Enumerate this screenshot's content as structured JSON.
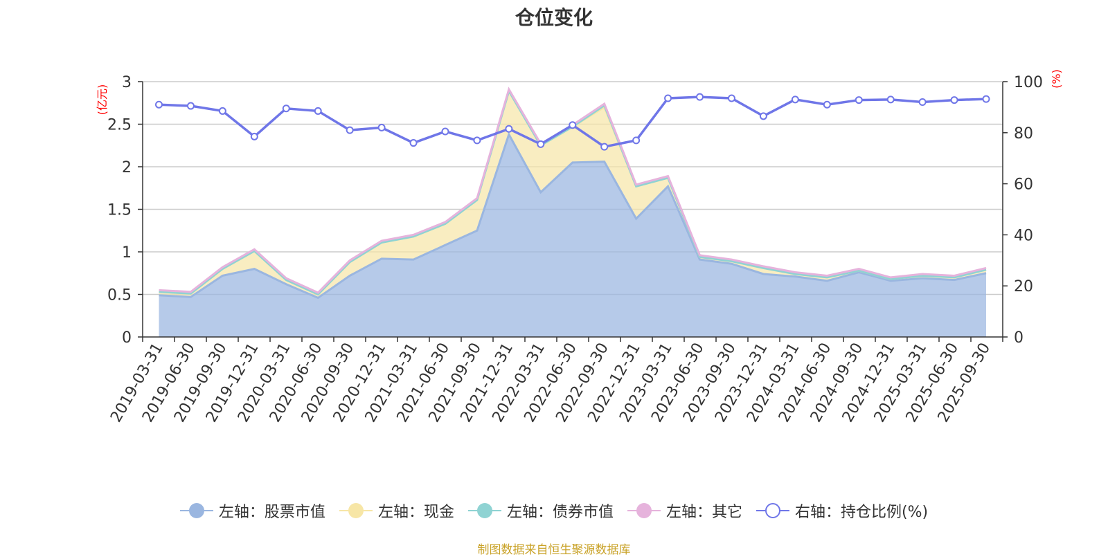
{
  "title": "仓位变化",
  "source": "制图数据来自恒生聚源数据库",
  "legend": [
    {
      "key": "stock",
      "label": "左轴：股票市值",
      "color": "#9ab6e0",
      "marker": "filled"
    },
    {
      "key": "cash",
      "label": "左轴：现金",
      "color": "#f7e6a6",
      "marker": "filled"
    },
    {
      "key": "bond",
      "label": "左轴：债券市值",
      "color": "#8fd3d3",
      "marker": "filled"
    },
    {
      "key": "other",
      "label": "左轴：其它",
      "color": "#e6b3dc",
      "marker": "filled"
    },
    {
      "key": "ratio",
      "label": "右轴：持仓比例(%)",
      "color": "#6f76e8",
      "marker": "hollow"
    }
  ],
  "chart_data": {
    "type": "area",
    "title": "仓位变化",
    "x": [
      "2019-03-31",
      "2019-06-30",
      "2019-09-30",
      "2019-12-31",
      "2020-03-31",
      "2020-06-30",
      "2020-09-30",
      "2020-12-31",
      "2021-03-31",
      "2021-06-30",
      "2021-09-30",
      "2021-12-31",
      "2022-03-31",
      "2022-06-30",
      "2022-09-30",
      "2022-12-31",
      "2023-03-31",
      "2023-06-30",
      "2023-09-30",
      "2023-12-31",
      "2024-03-31",
      "2024-06-30",
      "2024-09-30",
      "2024-12-31",
      "2025-03-31",
      "2025-06-30",
      "2025-09-30"
    ],
    "left_axis": {
      "label": "(亿元)",
      "range": [
        0,
        3
      ],
      "ticks": [
        "0",
        "0.5",
        "1",
        "1.5",
        "2",
        "2.5",
        "3"
      ]
    },
    "right_axis": {
      "label": "(%)",
      "range": [
        0,
        100
      ],
      "ticks": [
        "0",
        "20",
        "40",
        "60",
        "80",
        "100"
      ]
    },
    "grid": true,
    "legend_position": "bottom",
    "series": [
      {
        "name": "左轴：股票市值",
        "axis": "left",
        "stacked": true,
        "color": "#9ab6e0",
        "values": [
          0.49,
          0.47,
          0.72,
          0.8,
          0.62,
          0.46,
          0.72,
          0.92,
          0.91,
          1.08,
          1.25,
          2.38,
          1.7,
          2.05,
          2.06,
          1.39,
          1.77,
          0.91,
          0.86,
          0.74,
          0.71,
          0.66,
          0.76,
          0.66,
          0.69,
          0.67,
          0.75
        ]
      },
      {
        "name": "左轴：现金",
        "axis": "left",
        "stacked": true,
        "color": "#f7e6a6",
        "values": [
          0.04,
          0.04,
          0.08,
          0.21,
          0.05,
          0.04,
          0.16,
          0.19,
          0.27,
          0.25,
          0.36,
          0.51,
          0.55,
          0.42,
          0.64,
          0.38,
          0.1,
          0.03,
          0.03,
          0.07,
          0.03,
          0.04,
          0.02,
          0.02,
          0.03,
          0.03,
          0.04
        ]
      },
      {
        "name": "左轴：债券市值",
        "axis": "left",
        "stacked": true,
        "color": "#8fd3d3",
        "values": [
          0,
          0,
          0,
          0,
          0,
          0,
          0,
          0,
          0,
          0,
          0,
          0,
          0,
          0,
          0.02,
          0,
          0,
          0,
          0,
          0,
          0,
          0,
          0,
          0,
          0,
          0,
          0
        ]
      },
      {
        "name": "左轴：其它",
        "axis": "left",
        "stacked": true,
        "color": "#e6b3dc",
        "values": [
          0.02,
          0.02,
          0.02,
          0.02,
          0.02,
          0.02,
          0.02,
          0.02,
          0.02,
          0.02,
          0.02,
          0.02,
          0.02,
          0.02,
          0.02,
          0.02,
          0.02,
          0.02,
          0.02,
          0.02,
          0.02,
          0.02,
          0.02,
          0.02,
          0.02,
          0.02,
          0.02
        ]
      },
      {
        "name": "右轴：持仓比例(%)",
        "axis": "right",
        "type": "line",
        "color": "#6f76e8",
        "values": [
          91.0,
          90.5,
          88.5,
          78.5,
          89.5,
          88.5,
          81.0,
          82.0,
          76.0,
          80.5,
          77.0,
          81.5,
          75.5,
          83.0,
          74.5,
          77.0,
          93.5,
          94.0,
          93.5,
          86.5,
          93.0,
          91.0,
          92.8,
          93.0,
          92.0,
          92.8,
          93.2
        ]
      }
    ]
  }
}
